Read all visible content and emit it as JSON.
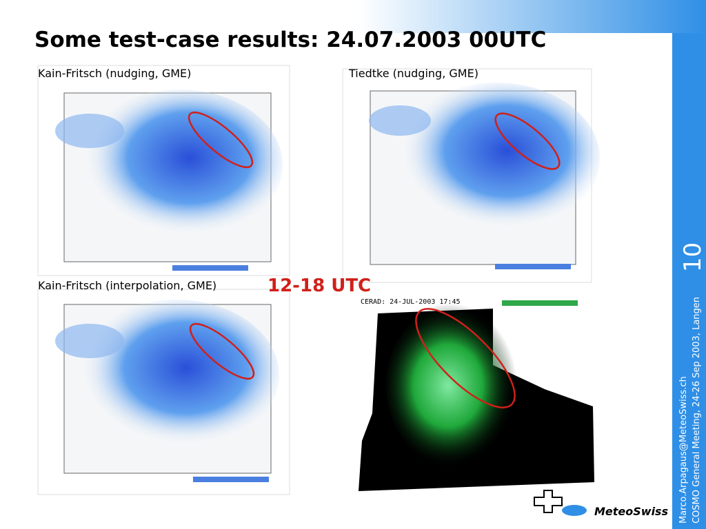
{
  "header": {
    "title": "Some test-case results: 24.07.2003 00UTC"
  },
  "panels": [
    {
      "label": "Kain-Fritsch (nudging, GME)"
    },
    {
      "label": "Tiedtke (nudging, GME)"
    },
    {
      "label": "Kain-Fritsch (interpolation, GME)"
    },
    {
      "label": "12-18 UTC",
      "caption": "CERAD: 24-JUL-2003 17:45"
    }
  ],
  "sidebar": {
    "slide_number": "10",
    "email": "Marco.Arpagaus@MeteoSwiss.ch",
    "meeting": "COSMO General Meeting, 24-26 Sep 2003, Langen"
  },
  "logo": {
    "text": "MeteoSwiss"
  }
}
